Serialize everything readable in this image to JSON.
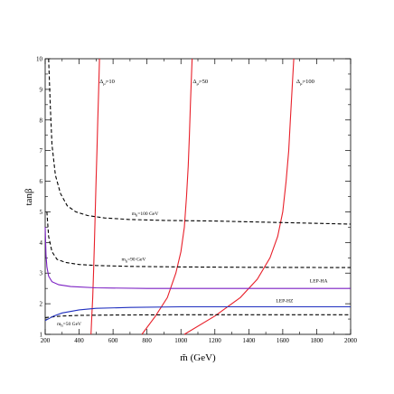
{
  "chart_data": {
    "type": "line",
    "xlabel": "m̃ (GeV)",
    "ylabel": "tanβ",
    "xlim": [
      200,
      2000
    ],
    "ylim": [
      1,
      10
    ],
    "xticks": [
      200,
      400,
      600,
      800,
      1000,
      1200,
      1400,
      1600,
      1800,
      2000
    ],
    "yticks": [
      1,
      2,
      3,
      4,
      5,
      6,
      7,
      8,
      9,
      10
    ],
    "grid": false,
    "series": [
      {
        "name": "Δ_μ̃=10",
        "color": "#e8202a",
        "dash": "solid",
        "x": [
          470,
          475,
          480,
          485,
          490,
          495,
          500,
          505,
          510,
          515,
          520
        ],
        "y": [
          1.0,
          1.6,
          2.2,
          3.0,
          4.0,
          5.0,
          6.0,
          7.0,
          8.0,
          9.0,
          10.0
        ]
      },
      {
        "name": "Δ_μ̃=50",
        "color": "#e8202a",
        "dash": "solid",
        "x": [
          770,
          850,
          920,
          970,
          1000,
          1020,
          1033,
          1043,
          1050,
          1056,
          1061,
          1066
        ],
        "y": [
          1.0,
          1.6,
          2.2,
          3.0,
          3.7,
          4.5,
          5.5,
          6.5,
          7.5,
          8.5,
          9.3,
          10.0
        ]
      },
      {
        "name": "Δ_μ̃=100",
        "color": "#e8202a",
        "dash": "solid",
        "x": [
          1020,
          1200,
          1350,
          1450,
          1525,
          1570,
          1600,
          1620,
          1635,
          1645,
          1655,
          1665
        ],
        "y": [
          1.0,
          1.6,
          2.2,
          2.8,
          3.5,
          4.2,
          5.0,
          6.0,
          7.0,
          8.0,
          9.0,
          10.0
        ]
      },
      {
        "name": "m_h=100 GeV",
        "color": "#000000",
        "dash": "dashed",
        "x": [
          220,
          230,
          240,
          260,
          290,
          330,
          380,
          450,
          550,
          700,
          900,
          1200,
          1600,
          2000
        ],
        "y": [
          10.0,
          8.5,
          7.2,
          6.2,
          5.6,
          5.2,
          5.0,
          4.88,
          4.8,
          4.75,
          4.72,
          4.7,
          4.65,
          4.6
        ]
      },
      {
        "name": "m_h=90 GeV",
        "color": "#000000",
        "dash": "dashed",
        "x": [
          210,
          220,
          240,
          270,
          320,
          400,
          500,
          700,
          1000,
          1400,
          2000
        ],
        "y": [
          5.0,
          4.2,
          3.7,
          3.45,
          3.35,
          3.28,
          3.25,
          3.22,
          3.2,
          3.19,
          3.18
        ]
      },
      {
        "name": "m_h=50 GeV",
        "color": "#000000",
        "dash": "dashed",
        "x": [
          200,
          300,
          400,
          600,
          1000,
          1500,
          2000
        ],
        "y": [
          1.55,
          1.6,
          1.62,
          1.63,
          1.64,
          1.64,
          1.64
        ]
      },
      {
        "name": "LEP-HA",
        "color": "#7b1fc3",
        "dash": "solid",
        "x": [
          200,
          205,
          210,
          220,
          240,
          280,
          350,
          500,
          800,
          1200,
          2000
        ],
        "y": [
          4.5,
          3.6,
          3.2,
          2.9,
          2.72,
          2.62,
          2.56,
          2.52,
          2.5,
          2.5,
          2.5
        ]
      },
      {
        "name": "LEP-HZ",
        "color": "#1f2fbf",
        "dash": "solid",
        "x": [
          200,
          250,
          300,
          400,
          500,
          700,
          1000,
          1500,
          2000
        ],
        "y": [
          1.45,
          1.6,
          1.7,
          1.8,
          1.85,
          1.88,
          1.9,
          1.9,
          1.9
        ]
      }
    ],
    "annotations": [
      {
        "text": "Δ",
        "sub": "μ̃",
        "tail": "=10",
        "x": 520,
        "y": 9.2
      },
      {
        "text": "Δ",
        "sub": "μ̃",
        "tail": "=50",
        "x": 1070,
        "y": 9.2
      },
      {
        "text": "Δ",
        "sub": "μ̃",
        "tail": "=100",
        "x": 1680,
        "y": 9.2
      },
      {
        "text": "m",
        "sub": "h",
        "tail": "=100 GeV",
        "x": 710,
        "y": 4.9
      },
      {
        "text": "m",
        "sub": "h",
        "tail": "=90 GeV",
        "x": 650,
        "y": 3.4
      },
      {
        "text": "m",
        "sub": "h",
        "tail": "=50 GeV",
        "x": 270,
        "y": 1.3
      },
      {
        "text": "LEP-HA",
        "sub": "",
        "tail": "",
        "x": 1760,
        "y": 2.7
      },
      {
        "text": "LEP-HZ",
        "sub": "",
        "tail": "",
        "x": 1560,
        "y": 2.05
      }
    ]
  }
}
